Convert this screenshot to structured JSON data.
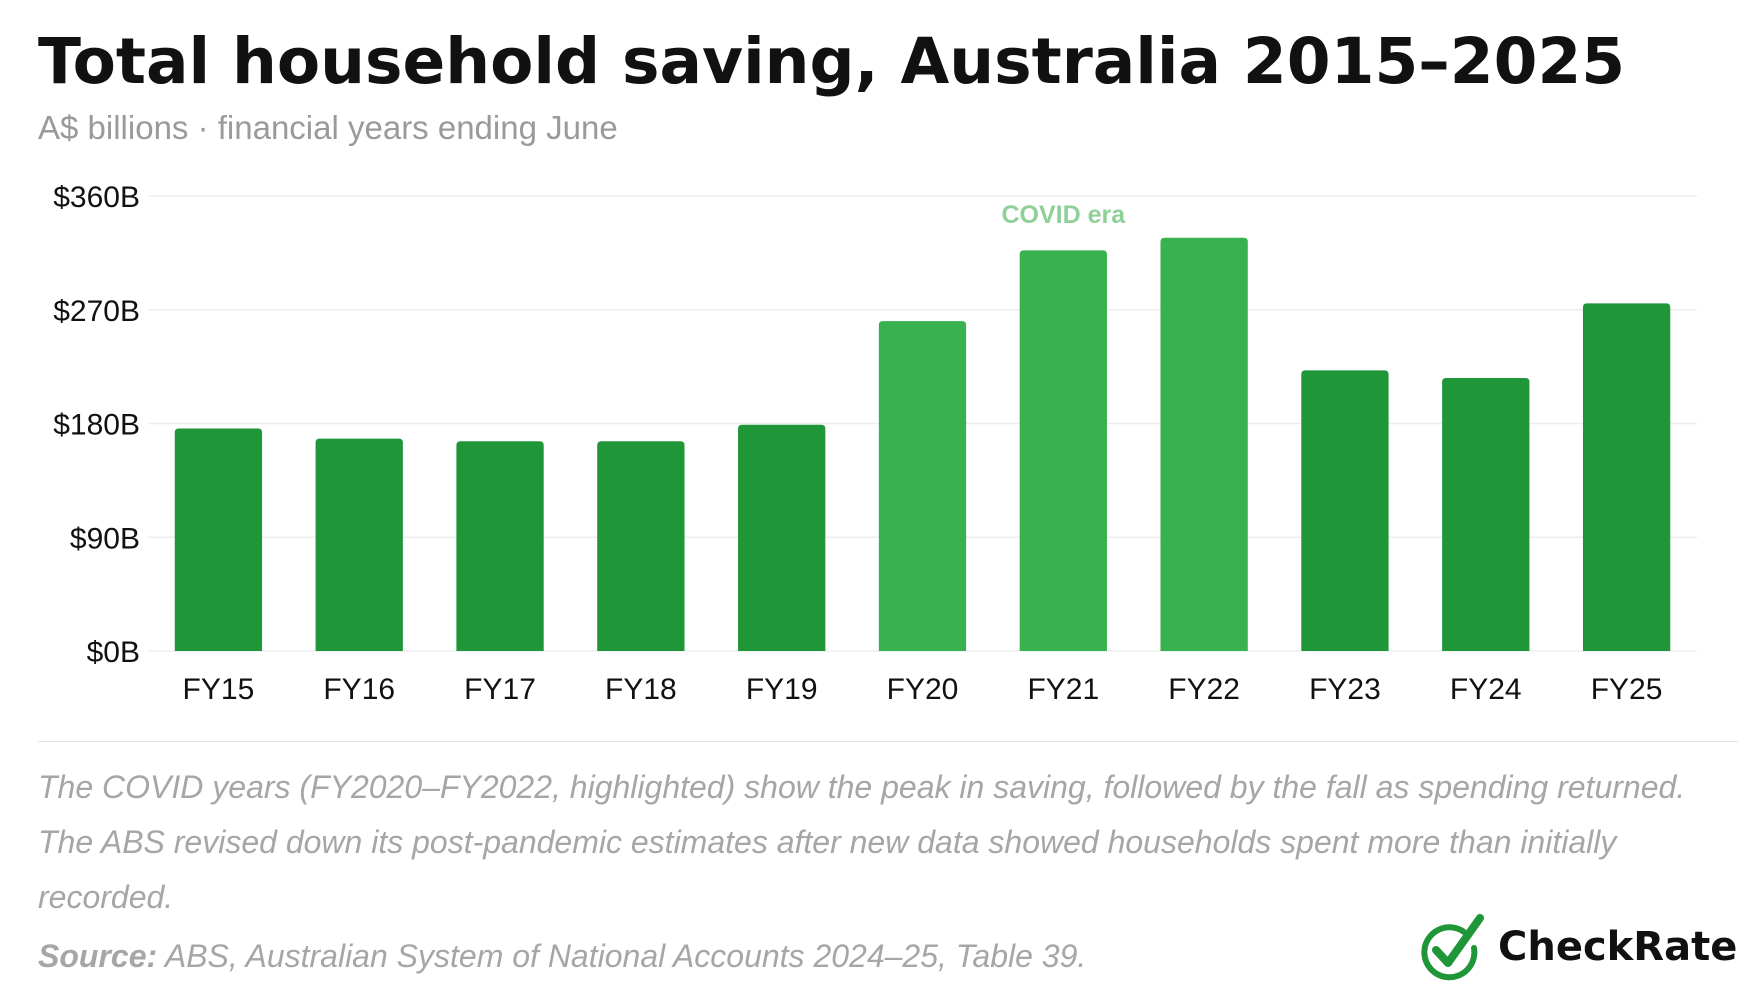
{
  "header": {
    "title": "Total household saving, Australia 2015–2025",
    "subtitle": "A$ billions · financial years ending June"
  },
  "chart_data": {
    "type": "bar",
    "categories": [
      "FY15",
      "FY16",
      "FY17",
      "FY18",
      "FY19",
      "FY20",
      "FY21",
      "FY22",
      "FY23",
      "FY24",
      "FY25"
    ],
    "values": [
      176,
      168,
      166,
      166,
      179,
      261,
      317,
      327,
      222,
      216,
      275
    ],
    "highlighted": [
      "FY20",
      "FY21",
      "FY22"
    ],
    "yticks": [
      "$0B",
      "$90B",
      "$180B",
      "$270B",
      "$360B"
    ],
    "ytick_values": [
      0,
      90,
      180,
      270,
      360
    ],
    "ylim": [
      0,
      360
    ],
    "annotation": "COVID era",
    "grid": true,
    "legend": "none",
    "colors": {
      "normal": "#1f9637",
      "highlight": "#38b14f",
      "annotation": "#8fcf98",
      "grid": "#ededed"
    }
  },
  "footer": {
    "note": "The COVID years (FY2020–FY2022, highlighted) show the peak in saving, followed by the fall as spending returned. The ABS revised down its post-pandemic estimates after new data showed households spent more than initially recorded.",
    "source_label": "Source:",
    "source_text": "ABS, Australian System of National Accounts 2024–25, Table 39."
  },
  "logo": {
    "text": "CheckRate",
    "icon": "checkmark-circle-icon",
    "color": "#1f9637"
  }
}
